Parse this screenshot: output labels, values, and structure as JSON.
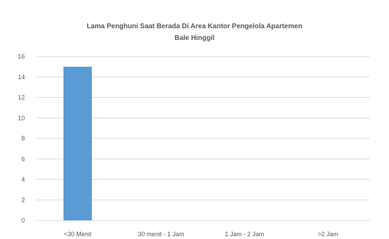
{
  "chart_data": {
    "type": "bar",
    "title_lines": [
      "Lama Penghuni Saat Berada Di Area Kantor Pengelola Apartemen",
      "Bale Hinggil"
    ],
    "categories": [
      "<30 Menit",
      "30 menit - 1 Jam",
      "1 Jam - 2 Jam",
      ">2 Jam"
    ],
    "values": [
      15,
      0,
      0,
      0
    ],
    "xlabel": "",
    "ylabel": "",
    "ylim": [
      0,
      16
    ],
    "yticks": [
      0,
      2,
      4,
      6,
      8,
      10,
      12,
      14,
      16
    ],
    "grid": true,
    "legend": "none",
    "bar_color": "#5b9bd5",
    "grid_color": "#d9d9d9",
    "text_color": "#595959"
  }
}
